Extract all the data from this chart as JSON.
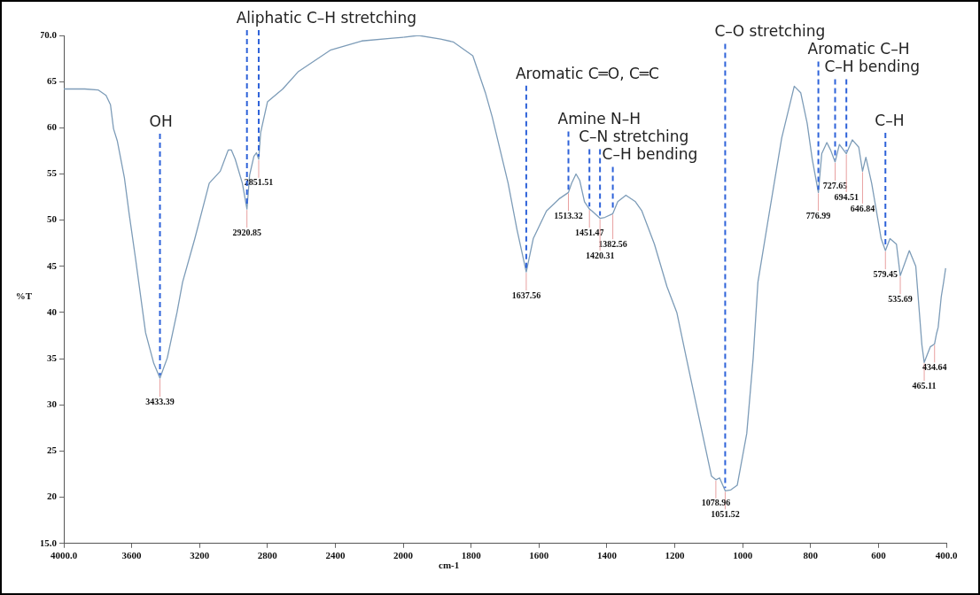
{
  "chart_data": [
    {
      "type": "line",
      "ylabel": "%T",
      "marker": "none",
      "xlim": [
        4000,
        2000
      ],
      "xticks": [
        {
          "value": 4000,
          "label": "4000.0"
        },
        3600,
        3200,
        2800,
        2400,
        2000
      ],
      "ylim": [
        15,
        70
      ],
      "yticks": [
        {
          "value": 15,
          "label": "15.0"
        },
        20,
        25,
        30,
        35,
        40,
        45,
        50,
        55,
        60,
        65,
        {
          "value": 70,
          "label": "70.0"
        }
      ],
      "x": [
        4000,
        3876,
        3798,
        3751,
        3725,
        3707,
        3685,
        3643,
        3615,
        3577,
        3518,
        3470,
        3433.39,
        3390,
        3333,
        3300,
        3228,
        3143,
        3078,
        3031,
        3013,
        2990,
        2948,
        2920.85,
        2905,
        2880,
        2865,
        2851.51,
        2840,
        2800,
        2710,
        2617,
        2430,
        2245,
        2063,
        2000
      ],
      "series": [
        {
          "color": "#7d9cb8",
          "values": [
            64.2,
            64.2,
            64.1,
            63.5,
            62.5,
            59.9,
            58.6,
            54.6,
            50.7,
            45.8,
            37.8,
            34.5,
            32.9,
            35.1,
            40.0,
            43.3,
            48.0,
            54.0,
            55.3,
            57.6,
            57.6,
            56.6,
            54.0,
            51.2,
            54.9,
            56.9,
            57.3,
            56.6,
            59.5,
            62.8,
            64.2,
            66.1,
            68.4,
            69.4,
            69.7,
            69.8
          ]
        }
      ],
      "annotations": [
        {
          "text": "OH",
          "x": 3433.39,
          "y": 32.9
        },
        {
          "text": "Aliphatic C–H stretching",
          "x": 2920.85,
          "y": 51.2
        },
        {
          "text": "3433.39",
          "x": 3433.39,
          "y": 32.9
        },
        {
          "text": "2920.85",
          "x": 2920.85,
          "y": 51.2
        },
        {
          "text": "2851.51",
          "x": 2851.51,
          "y": 56.6
        }
      ]
    },
    {
      "type": "line",
      "xlabel": "cm-1",
      "marker": "none",
      "tick_labels": "x",
      "xlim": [
        2000,
        400
      ],
      "xticks": [
        1800,
        1600,
        1400,
        1200,
        1000,
        800,
        600,
        {
          "value": 400,
          "label": "400.0"
        }
      ],
      "ylim": [
        15,
        70
      ],
      "x": [
        2000,
        1955,
        1890,
        1853,
        1795,
        1758,
        1738,
        1691,
        1665,
        1637.56,
        1617,
        1578,
        1541,
        1513.32,
        1504,
        1491,
        1480,
        1466,
        1451.47,
        1444,
        1420.31,
        1406,
        1382.56,
        1368,
        1344,
        1316,
        1297,
        1260,
        1223,
        1194,
        1166,
        1128,
        1092,
        1078.96,
        1068,
        1051.52,
        1035,
        1016,
        988,
        969,
        955,
        922,
        885,
        848,
        829,
        810,
        795,
        776.99,
        767,
        752,
        741,
        727.65,
        715,
        694.51,
        677,
        658,
        646.84,
        637,
        620,
        592,
        579.45,
        566,
        547,
        535.69,
        509,
        490,
        472,
        465.11,
        447,
        434.64,
        429,
        424,
        415,
        408,
        402
      ],
      "series": [
        {
          "color": "#7d9cb8",
          "values": [
            69.8,
            70.0,
            69.6,
            69.3,
            67.8,
            63.8,
            61.2,
            54.0,
            49.0,
            44.4,
            48.0,
            51.0,
            52.3,
            53.0,
            54.0,
            55.0,
            54.3,
            52.0,
            51.2,
            51.0,
            50.2,
            50.3,
            50.7,
            52.0,
            52.7,
            52.0,
            51.0,
            47.4,
            42.8,
            40.0,
            35.1,
            28.5,
            22.3,
            21.9,
            22.1,
            20.7,
            20.8,
            21.3,
            26.9,
            35.1,
            43.3,
            50.7,
            58.9,
            64.5,
            63.8,
            60.5,
            56.6,
            53.0,
            57.2,
            58.4,
            57.6,
            56.3,
            58.2,
            57.2,
            58.7,
            57.9,
            55.3,
            56.8,
            54.0,
            48.0,
            46.7,
            48.0,
            47.4,
            44.0,
            46.7,
            45.0,
            36.5,
            34.6,
            36.3,
            36.6,
            37.7,
            38.4,
            41.7,
            43.3,
            44.8
          ]
        }
      ],
      "annotations": [
        {
          "text": "Aromatic C═O, C═C",
          "x": 1637.56,
          "y": 44.4
        },
        {
          "text": "Amine N–H",
          "x": 1513.32,
          "y": 53.0
        },
        {
          "text": "C–N stretching",
          "x": 1451.47,
          "y": 51.2
        },
        {
          "text": "C–H bending",
          "x": 1382.56,
          "y": 50.7
        },
        {
          "text": "C–O stretching",
          "x": 1051.52,
          "y": 20.7
        },
        {
          "text": "Aromatic C–H",
          "x": 776.99,
          "y": 53.0
        },
        {
          "text": "C–H bending",
          "x": 727.65,
          "y": 56.3
        },
        {
          "text": "C–H",
          "x": 579.45,
          "y": 46.7
        },
        {
          "text": "1637.56",
          "x": 1637.56,
          "y": 44.4
        },
        {
          "text": "1513.32",
          "x": 1513.32,
          "y": 53.0
        },
        {
          "text": "1451.47",
          "x": 1451.47,
          "y": 51.2
        },
        {
          "text": "1420.31",
          "x": 1420.31,
          "y": 50.2
        },
        {
          "text": "1382.56",
          "x": 1382.56,
          "y": 50.7
        },
        {
          "text": "1078.96",
          "x": 1078.96,
          "y": 21.9
        },
        {
          "text": "1051.52",
          "x": 1051.52,
          "y": 20.7
        },
        {
          "text": "776.99",
          "x": 776.99,
          "y": 53.0
        },
        {
          "text": "727.65",
          "x": 727.65,
          "y": 56.3
        },
        {
          "text": "694.51",
          "x": 694.51,
          "y": 57.2
        },
        {
          "text": "646.84",
          "x": 646.84,
          "y": 55.3
        },
        {
          "text": "579.45",
          "x": 579.45,
          "y": 46.7
        },
        {
          "text": "535.69",
          "x": 535.69,
          "y": 44.0
        },
        {
          "text": "465.11",
          "x": 465.11,
          "y": 34.6
        },
        {
          "text": "434.64",
          "x": 434.64,
          "y": 36.6
        }
      ]
    }
  ]
}
